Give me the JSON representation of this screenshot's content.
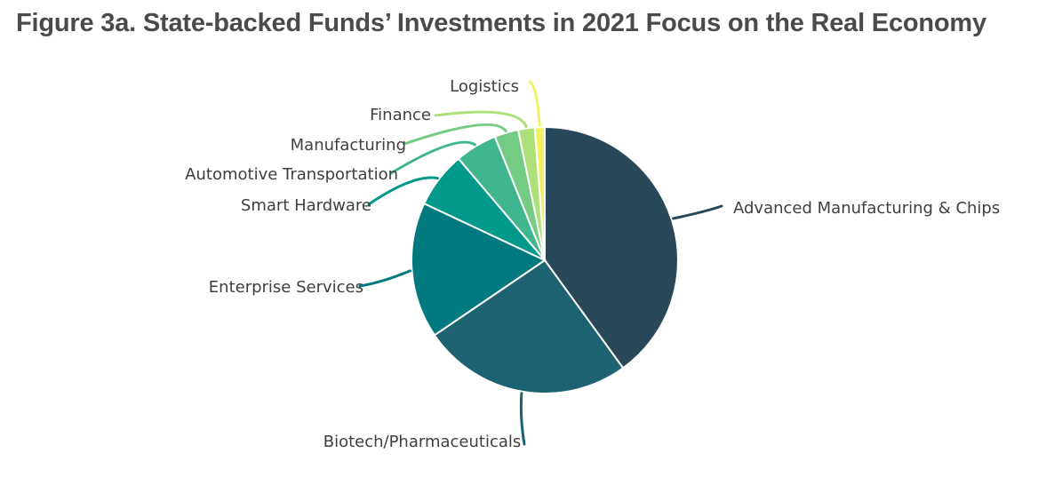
{
  "chart_data": {
    "type": "pie",
    "title": "Figure 3a. State-backed Funds’ Investments in 2021 Focus on the Real Economy",
    "slices": [
      {
        "label": "Advanced Manufacturing & Chips",
        "value": 40.0,
        "color": "#29495a"
      },
      {
        "label": "Biotech/Pharmaceuticals",
        "value": 25.5,
        "color": "#1c6271"
      },
      {
        "label": "Enterprise Services",
        "value": 16.5,
        "color": "#007a7f"
      },
      {
        "label": "Smart Hardware",
        "value": 6.8,
        "color": "#00998a"
      },
      {
        "label": "Automotive Transportation",
        "value": 5.1,
        "color": "#3fb68e"
      },
      {
        "label": "Manufacturing",
        "value": 2.9,
        "color": "#74cc84"
      },
      {
        "label": "Finance",
        "value": 2.0,
        "color": "#aee079"
      },
      {
        "label": "Logistics",
        "value": 1.2,
        "color": "#f2f261"
      }
    ],
    "start_angle_deg": 0,
    "direction": "clockwise",
    "labels": "outside with leader lines"
  }
}
